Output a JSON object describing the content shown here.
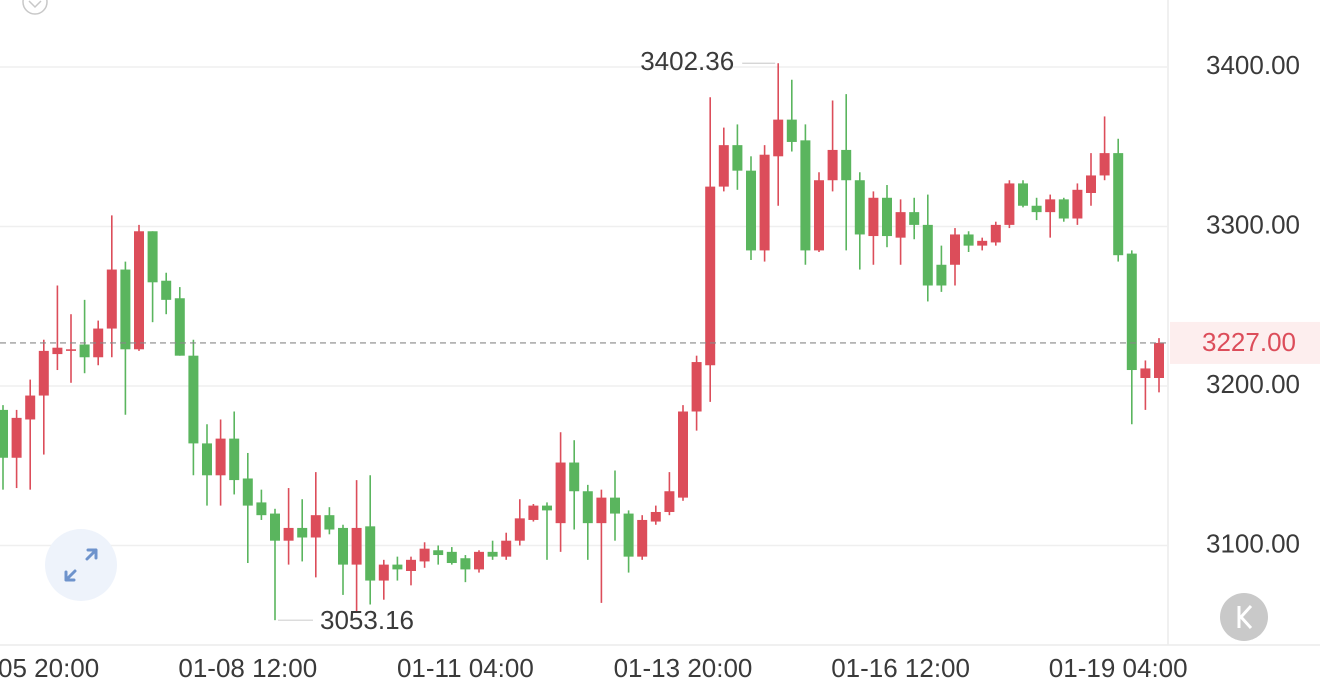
{
  "chart_data": {
    "type": "candlestick",
    "categories": [
      null,
      null,
      "05 20:00",
      null,
      null,
      null,
      null,
      null,
      null,
      null,
      null,
      null,
      null,
      null,
      null,
      null,
      null,
      null,
      "01-08 12:00",
      null,
      null,
      null,
      null,
      null,
      null,
      null,
      null,
      null,
      null,
      null,
      null,
      null,
      null,
      null,
      "01-11 04:00",
      null,
      null,
      null,
      null,
      null,
      null,
      null,
      null,
      null,
      null,
      null,
      null,
      null,
      null,
      null,
      "01-13 20:00",
      null,
      null,
      null,
      null,
      null,
      null,
      null,
      null,
      null,
      null,
      null,
      null,
      null,
      null,
      null,
      "01-16 12:00",
      null,
      null,
      null,
      null,
      null,
      null,
      null,
      null,
      null,
      null,
      null,
      null,
      null,
      null,
      null,
      "01-19 04:00",
      null,
      null,
      null
    ],
    "open": [
      3185,
      3155,
      3179,
      3194,
      3220,
      3222,
      3226,
      3218,
      3236,
      3273,
      3223,
      3297,
      3266,
      3255,
      3219,
      3164,
      3144,
      3167,
      3142,
      3127,
      3120,
      3103,
      3111,
      3105,
      3119,
      3111,
      3088,
      3112,
      3078,
      3088,
      3084,
      3090,
      3097,
      3096,
      3092,
      3085,
      3096,
      3093,
      3103,
      3116,
      3125,
      3114,
      3152,
      3134,
      3114,
      3130,
      3120,
      3093,
      3115,
      3121,
      3130,
      3184,
      3213,
      3325,
      3351,
      3335,
      3285,
      3344,
      3367,
      3354,
      3285,
      3329,
      3348,
      3329,
      3294,
      3318,
      3293,
      3309,
      3301,
      3276,
      3276,
      3295,
      3288,
      3290,
      3301,
      3327,
      3313,
      3309,
      3317,
      3305,
      3321,
      3332,
      3346,
      3283,
      3205,
      3205
    ],
    "high": [
      3188,
      3185,
      3204,
      3229,
      3263,
      3245,
      3254,
      3241,
      3307,
      3278,
      3301,
      3297,
      3271,
      3262,
      3229,
      3176,
      3179,
      3184,
      3158,
      3135,
      3123,
      3136,
      3129,
      3146,
      3124,
      3113,
      3141,
      3144,
      3091,
      3093,
      3093,
      3102,
      3100,
      3099,
      3094,
      3097,
      3103,
      3108,
      3129,
      3126,
      3127,
      3171,
      3166,
      3138,
      3135,
      3147,
      3122,
      3119,
      3125,
      3146,
      3188,
      3219,
      3381,
      3362,
      3364,
      3344,
      3351,
      3402.36,
      3392,
      3364,
      3334,
      3379,
      3383,
      3334,
      3322,
      3326,
      3317,
      3318,
      3320,
      3288,
      3299,
      3297,
      3293,
      3303,
      3329,
      3329,
      3318,
      3320,
      3318,
      3327,
      3346,
      3369,
      3355,
      3285,
      3216,
      3230
    ],
    "low": [
      3135,
      3136,
      3135,
      3157,
      3210,
      3202,
      3208,
      3213,
      3218,
      3182,
      3222,
      3240,
      3245,
      3219,
      3144,
      3125,
      3125,
      3132,
      3089,
      3116,
      3053.16,
      3088,
      3090,
      3080,
      3107,
      3069,
      3058,
      3063,
      3066,
      3078,
      3075,
      3086,
      3088,
      3088,
      3077,
      3083,
      3091,
      3091,
      3100,
      3115,
      3091,
      3096,
      3110,
      3091,
      3064,
      3103,
      3083,
      3091,
      3113,
      3119,
      3128,
      3172,
      3190,
      3322,
      3323,
      3279,
      3278,
      3313,
      3347,
      3276,
      3284,
      3322,
      3285,
      3273,
      3276,
      3287,
      3276,
      3292,
      3253,
      3259,
      3263,
      3284,
      3285,
      3288,
      3299,
      3312,
      3304,
      3293,
      3303,
      3301,
      3313,
      3329,
      3278,
      3176,
      3185,
      3196
    ],
    "close": [
      3155,
      3180,
      3194,
      3222,
      3224,
      3223,
      3218,
      3236,
      3273,
      3223,
      3297,
      3265,
      3254,
      3219,
      3164,
      3144,
      3167,
      3141,
      3125,
      3119,
      3103,
      3111,
      3105,
      3119,
      3110,
      3088,
      3111,
      3078,
      3088,
      3085,
      3091,
      3098,
      3094,
      3089,
      3085,
      3096,
      3093,
      3103,
      3117,
      3125,
      3122,
      3152,
      3134,
      3114,
      3130,
      3120,
      3093,
      3116,
      3121,
      3134,
      3184,
      3215,
      3325,
      3351,
      3335,
      3285,
      3345,
      3367,
      3353,
      3285,
      3329,
      3348,
      3329,
      3295,
      3318,
      3294,
      3309,
      3301,
      3263,
      3263,
      3295,
      3288,
      3291,
      3301,
      3327,
      3313,
      3309,
      3317,
      3305,
      3323,
      3332,
      3346,
      3282,
      3210,
      3211,
      3227
    ],
    "up_color": "#dc4d5a",
    "down_color": "#5ab55e",
    "ylim": [
      3037.6,
      3442
    ],
    "yticks": [
      {
        "value": 3100,
        "label": "3100.00"
      },
      {
        "value": 3200,
        "label": "3200.00"
      },
      {
        "value": 3300,
        "label": "3300.00"
      },
      {
        "value": 3400,
        "label": "3400.00"
      }
    ],
    "grid": true,
    "annotations": {
      "max": 3402.36,
      "min": 3053.16,
      "last": {
        "value": 3227,
        "label": "3227.00"
      }
    }
  }
}
